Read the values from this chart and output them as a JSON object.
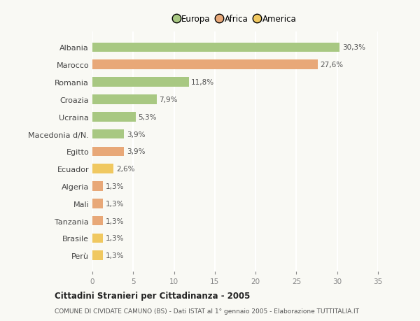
{
  "categories": [
    "Albania",
    "Marocco",
    "Romania",
    "Croazia",
    "Ucraina",
    "Macedonia d/N.",
    "Egitto",
    "Ecuador",
    "Algeria",
    "Mali",
    "Tanzania",
    "Brasile",
    "Perù"
  ],
  "values": [
    30.3,
    27.6,
    11.8,
    7.9,
    5.3,
    3.9,
    3.9,
    2.6,
    1.3,
    1.3,
    1.3,
    1.3,
    1.3
  ],
  "labels": [
    "30,3%",
    "27,6%",
    "11,8%",
    "7,9%",
    "5,3%",
    "3,9%",
    "3,9%",
    "2,6%",
    "1,3%",
    "1,3%",
    "1,3%",
    "1,3%",
    "1,3%"
  ],
  "colors": [
    "#a8c882",
    "#e8a878",
    "#a8c882",
    "#a8c882",
    "#a8c882",
    "#a8c882",
    "#e8a878",
    "#f0c860",
    "#e8a878",
    "#e8a878",
    "#e8a878",
    "#f0c860",
    "#f0c860"
  ],
  "legend": [
    {
      "label": "Europa",
      "color": "#a8c882"
    },
    {
      "label": "Africa",
      "color": "#e8a878"
    },
    {
      "label": "America",
      "color": "#f0c860"
    }
  ],
  "xlim": [
    0,
    35
  ],
  "xticks": [
    0,
    5,
    10,
    15,
    20,
    25,
    30,
    35
  ],
  "title": "Cittadini Stranieri per Cittadinanza - 2005",
  "subtitle": "COMUNE DI CIVIDATE CAMUNO (BS) - Dati ISTAT al 1° gennaio 2005 - Elaborazione TUTTITALIA.IT",
  "background_color": "#f9f9f4",
  "grid_color": "#ffffff",
  "bar_height": 0.55
}
